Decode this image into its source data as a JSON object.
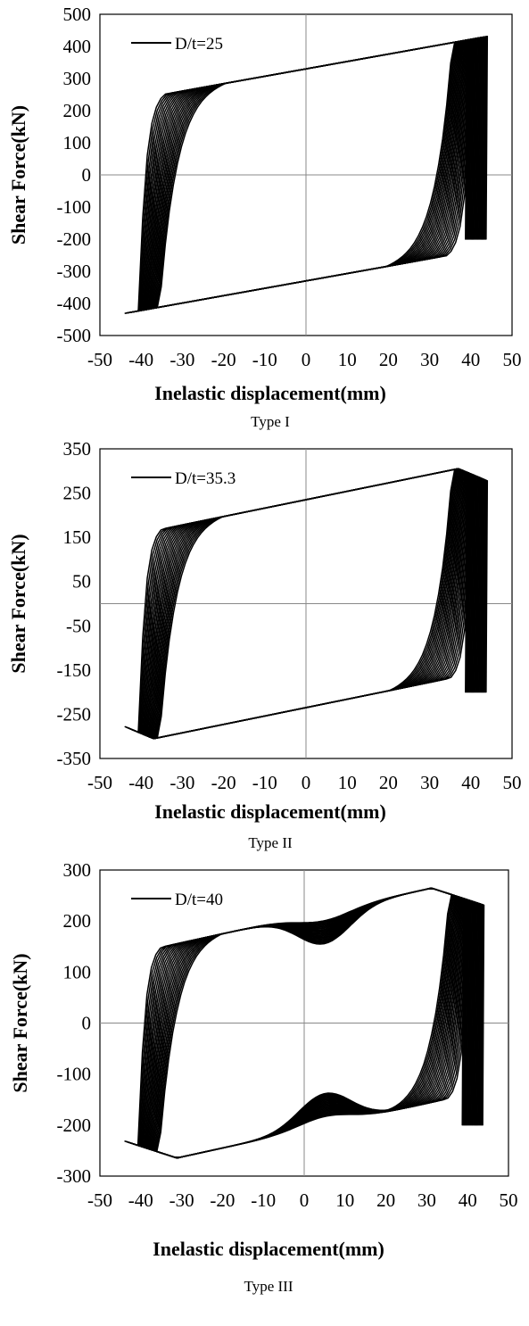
{
  "chart_data": [
    {
      "type": "line",
      "subtitle": "Type I",
      "xlabel": "Inelastic displacement(mm)",
      "ylabel": "Shear Force(kN)",
      "xlim": [
        -50,
        50
      ],
      "ylim": [
        -500,
        500
      ],
      "xticks": [
        -50,
        -40,
        -30,
        -20,
        -10,
        0,
        10,
        20,
        30,
        40,
        50
      ],
      "yticks": [
        500,
        400,
        300,
        200,
        100,
        0,
        -100,
        -200,
        -300,
        -400,
        -500
      ],
      "grid": false,
      "zero_lines": true,
      "legend": {
        "placement": "top-left",
        "entries": [
          "D/t=25"
        ]
      },
      "series": [
        {
          "name": "D/t=25",
          "description_points": {
            "peak_positive": {
              "x": 43.5,
              "y": 430
            },
            "peak_negative": {
              "x": -44,
              "y": -430
            },
            "x_intercepts_range": [
              -41,
              42
            ],
            "y_intercept_positive": 330,
            "y_intercept_negative": -330,
            "number_of_cycles": 22
          }
        }
      ]
    },
    {
      "type": "line",
      "subtitle": "Type II",
      "xlabel": "Inelastic displacement(mm)",
      "ylabel": "Shear Force(kN)",
      "xlim": [
        -50,
        50
      ],
      "ylim": [
        -350,
        350
      ],
      "xticks": [
        -50,
        -40,
        -30,
        -20,
        -10,
        0,
        10,
        20,
        30,
        40,
        50
      ],
      "yticks": [
        350,
        250,
        150,
        50,
        -50,
        -150,
        -250,
        -350
      ],
      "grid": false,
      "zero_lines": true,
      "legend": {
        "placement": "top-left",
        "entries": [
          "D/t=35.3"
        ]
      },
      "series": [
        {
          "name": "D/t=35.3",
          "description_points": {
            "peak_positive": {
              "x": 37.5,
              "y": 305
            },
            "peak_negative": {
              "x": -36,
              "y": -305
            },
            "end_positive": {
              "x": 44,
              "y": 278
            },
            "end_negative": {
              "x": -44,
              "y": -278
            },
            "y_intercept_positive": 235,
            "y_intercept_negative": -240,
            "number_of_cycles": 22
          }
        }
      ]
    },
    {
      "type": "line",
      "subtitle": "Type III",
      "xlabel": "Inelastic displacement(mm)",
      "ylabel": "Shear Force(kN)",
      "xlim": [
        -50,
        50
      ],
      "ylim": [
        -300,
        300
      ],
      "xticks": [
        -50,
        -40,
        -30,
        -20,
        -10,
        0,
        10,
        20,
        30,
        40,
        50
      ],
      "yticks": [
        300,
        200,
        100,
        0,
        -100,
        -200,
        -300
      ],
      "grid": false,
      "zero_lines": true,
      "legend": {
        "placement": "top-left",
        "entries": [
          "D/t=40"
        ]
      },
      "series": [
        {
          "name": "D/t=40",
          "description_points": {
            "peak_positive": {
              "x": 31,
              "y": 265
            },
            "peak_negative": {
              "x": -30,
              "y": -265
            },
            "end_positive": {
              "x": 43.5,
              "y": 232
            },
            "end_negative": {
              "x": -44,
              "y": -232
            },
            "local_buckling_dip_positive": {
              "x": 5,
              "y": 120
            },
            "local_buckling_dip_negative": {
              "x": 5,
              "y": -110
            },
            "y_intercept_positive": 210,
            "y_intercept_negative": -215,
            "number_of_cycles": 22
          }
        }
      ]
    }
  ]
}
